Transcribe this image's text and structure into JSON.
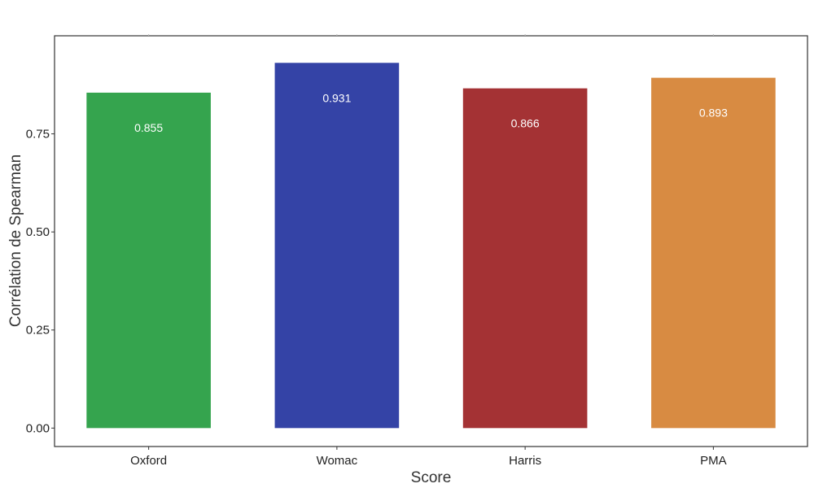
{
  "chart_data": {
    "type": "bar",
    "categories": [
      "Oxford",
      "Womac",
      "Harris",
      "PMA"
    ],
    "values": [
      0.855,
      0.931,
      0.866,
      0.893
    ],
    "labels": [
      "0.855",
      "0.931",
      "0.866",
      "0.893"
    ],
    "colors": [
      "#35a44e",
      "#3443a6",
      "#a43234",
      "#d88b42"
    ],
    "xlabel": "Score",
    "ylabel": "Corrélation de Spearman",
    "yticks": [
      0,
      0.25,
      0.5,
      0.75
    ],
    "ytick_labels": [
      "0.00",
      "0.25",
      "0.50",
      "0.75"
    ],
    "ylim": [
      -0.047,
      1.0
    ],
    "grid": false,
    "legend": "none"
  }
}
